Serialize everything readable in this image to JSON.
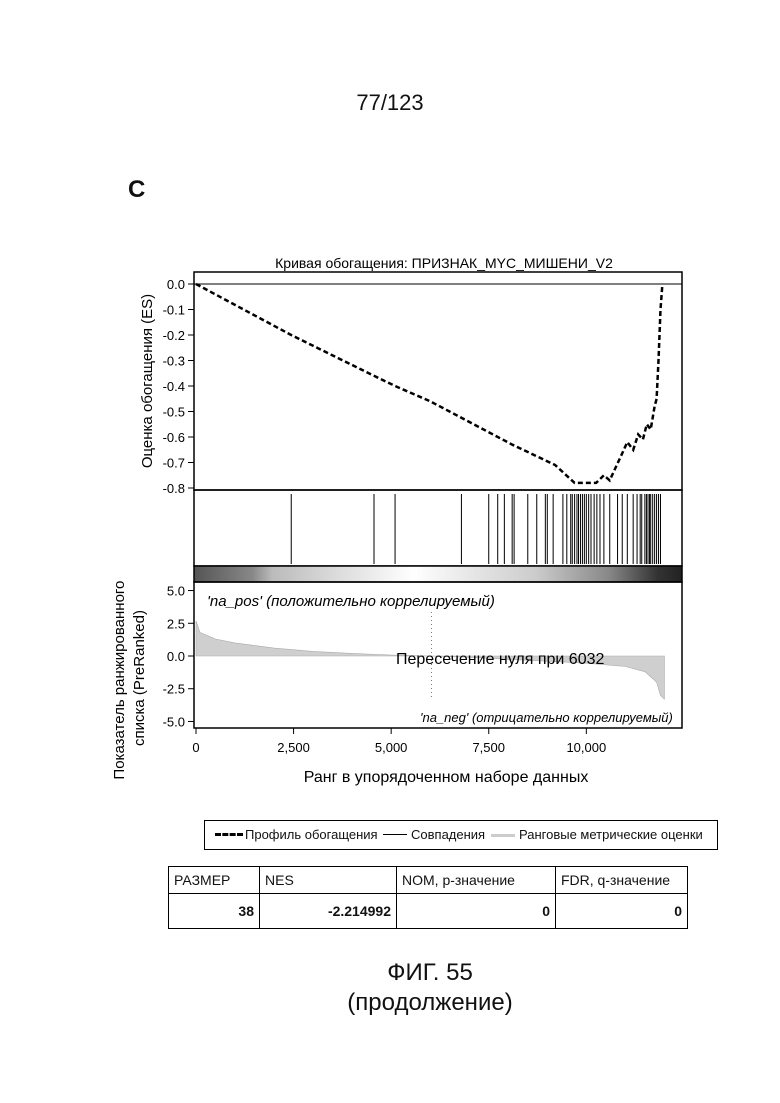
{
  "page_number": "77/123",
  "panel_letter": "C",
  "legend": {
    "es_profile": "Профиль обогащения",
    "hits": "Совпадения",
    "rank_metric": "Ранговые метрические оценки"
  },
  "stats_table": {
    "headers": [
      "РАЗМЕР",
      "NES",
      "NOM, p-значение",
      "FDR, q-значение"
    ],
    "values": [
      "38",
      "-2.214992",
      "0",
      "0"
    ]
  },
  "caption": {
    "line1": "ФИГ. 55",
    "line2": "(продолжение)"
  },
  "chart_data": {
    "type": "line",
    "title": "Кривая обогащения: ПРИЗНАК_MYC_МИШЕНИ_V2",
    "xlabel": "Ранг в упорядоченном наборе данных",
    "x_ticks": [
      "0",
      "2,500",
      "5,000",
      "7,500",
      "10,000"
    ],
    "xlim": [
      0,
      12400
    ],
    "es_panel": {
      "ylabel": "Оценка обогащения (ES)",
      "y_ticks": [
        "0.0",
        "-0.1",
        "-0.2",
        "-0.3",
        "-0.4",
        "-0.5",
        "-0.6",
        "-0.7",
        "-0.8"
      ],
      "ylim": [
        -0.8,
        0.0
      ],
      "series": [
        {
          "name": "Профиль обогащения",
          "x": [
            0,
            2440,
            4560,
            5100,
            6000,
            8100,
            9200,
            9700,
            10000,
            10250,
            10450,
            10600,
            10780,
            10900,
            11050,
            11200,
            11330,
            11450,
            11550,
            11650,
            11750,
            11800,
            11850,
            11900,
            11950
          ],
          "y": [
            0.0,
            -0.2,
            -0.36,
            -0.4,
            -0.46,
            -0.63,
            -0.71,
            -0.78,
            -0.78,
            -0.78,
            -0.75,
            -0.77,
            -0.71,
            -0.67,
            -0.62,
            -0.65,
            -0.59,
            -0.61,
            -0.55,
            -0.57,
            -0.48,
            -0.45,
            -0.3,
            -0.1,
            0.0
          ]
        }
      ]
    },
    "hits_x": [
      2440,
      4560,
      5100,
      6800,
      7500,
      7730,
      7900,
      8100,
      8150,
      8500,
      8730,
      8950,
      9000,
      9150,
      9400,
      9500,
      9600,
      9640,
      9700,
      9760,
      9800,
      9850,
      9900,
      9950,
      10000,
      10060,
      10120,
      10200,
      10270,
      10350,
      10450,
      10600,
      10800,
      10920,
      11050,
      11200,
      11300,
      11380,
      11420,
      11500,
      11540,
      11580,
      11620,
      11650,
      11700,
      11750,
      11800,
      11850,
      11900
    ],
    "metric_panel": {
      "ylabel": "Показатель ранжированного списка (PreRanked)",
      "y_ticks": [
        "5.0",
        "2.5",
        "0.0",
        "-2.5",
        "-5.0"
      ],
      "ylim": [
        -5.5,
        5.5
      ],
      "zero_cross_label": "Пересечение нуля при 6032",
      "zero_cross_x": 6032,
      "pos_label": "'na_pos' (положительно коррелируемый)",
      "neg_label": "'na_neg' (отрицательно коррелируемый)",
      "profile_x": [
        0,
        100,
        500,
        1000,
        2000,
        3000,
        4000,
        5000,
        6032,
        7000,
        8000,
        9000,
        10000,
        11000,
        11500,
        11800,
        11900,
        12000
      ],
      "profile_y": [
        2.7,
        1.8,
        1.3,
        1.0,
        0.6,
        0.35,
        0.2,
        0.08,
        0.0,
        -0.1,
        -0.25,
        -0.4,
        -0.55,
        -0.8,
        -1.2,
        -2.0,
        -3.0,
        -3.3
      ]
    }
  }
}
